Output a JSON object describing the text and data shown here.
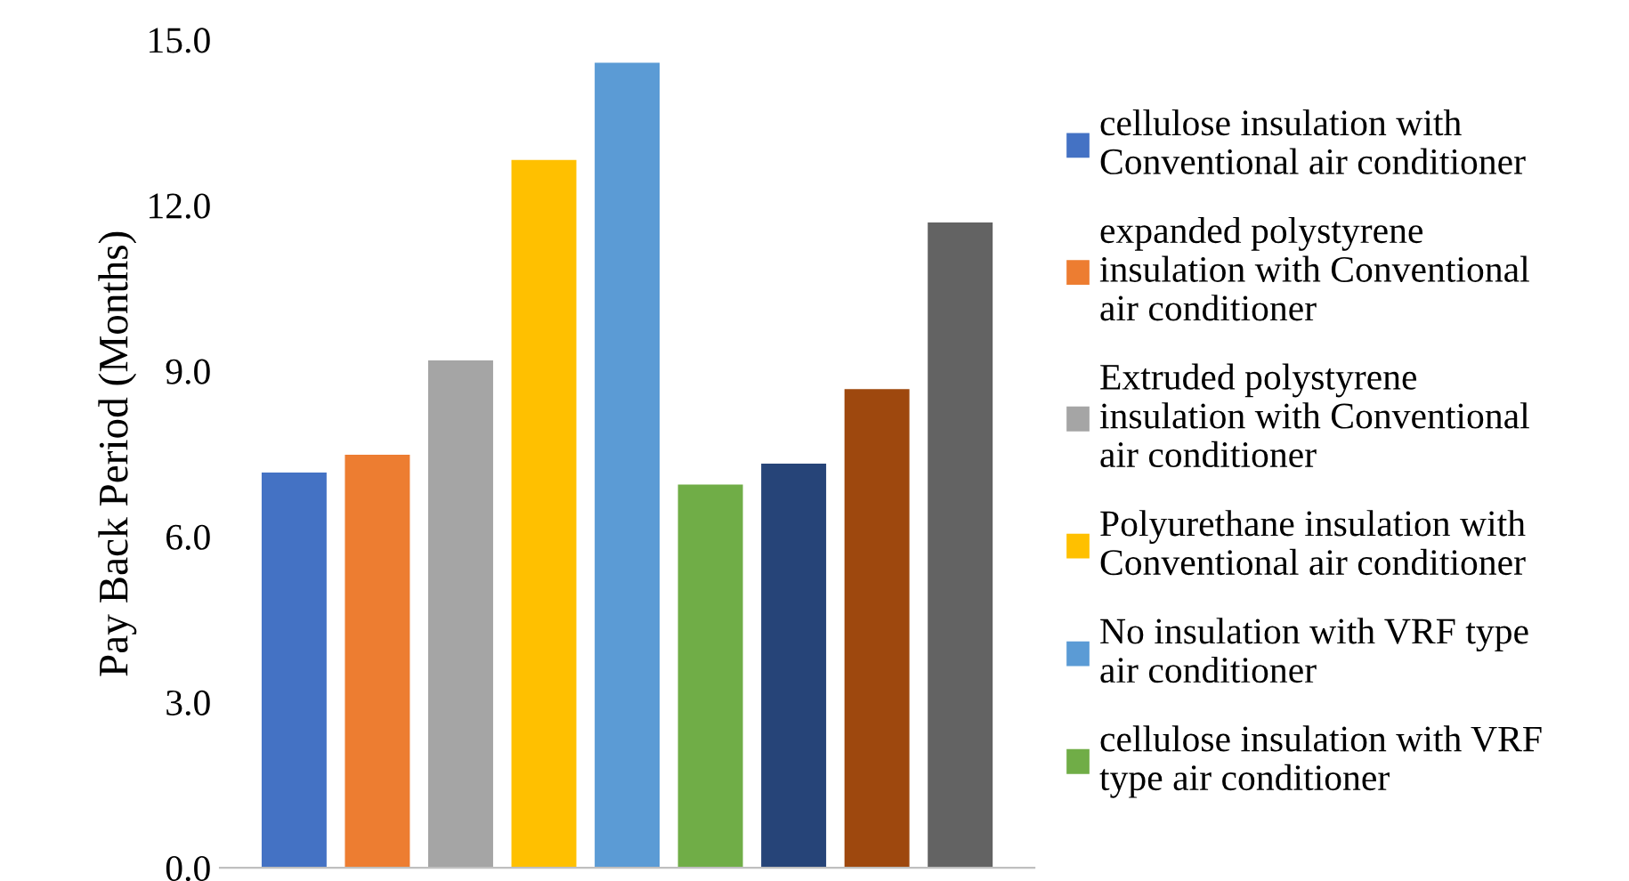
{
  "chart_data": {
    "type": "bar",
    "ylabel": "Pay Back Period (Months)",
    "categories": [
      null
    ],
    "series": [
      {
        "name": "cellulose insulation with Conventional air conditioner",
        "color": "#4472c4",
        "values": [
          7.16
        ]
      },
      {
        "name": "expanded polystyrene insulation with Conventional air conditioner",
        "color": "#ed7d31",
        "values": [
          7.48
        ]
      },
      {
        "name": "Extruded polystyrene insulation with Conventional air conditioner",
        "color": "#a5a5a5",
        "values": [
          9.19
        ]
      },
      {
        "name": "Polyurethane insulation with Conventional air conditioner",
        "color": "#ffc000",
        "values": [
          12.82
        ]
      },
      {
        "name": "No insulation with VRF type air conditioner",
        "color": "#5b9bd5",
        "values": [
          14.58
        ]
      },
      {
        "name": "cellulose insulation with VRF type air conditioner",
        "color": "#70ad47",
        "values": [
          6.94
        ]
      },
      {
        "color": "#264478",
        "values": [
          7.32
        ]
      },
      {
        "color": "#9e480e",
        "values": [
          8.67
        ]
      },
      {
        "color": "#636363",
        "values": [
          11.69
        ]
      }
    ],
    "ylim": [
      0,
      15
    ],
    "yticks": [
      {
        "value": 0,
        "label": "0.0"
      },
      {
        "value": 3,
        "label": "3.0"
      },
      {
        "value": 6,
        "label": "6.0"
      },
      {
        "value": 9,
        "label": "9.0"
      },
      {
        "value": 12,
        "label": "12.0"
      },
      {
        "value": 15,
        "label": "15.0"
      }
    ],
    "grid": false,
    "legend": "right"
  }
}
